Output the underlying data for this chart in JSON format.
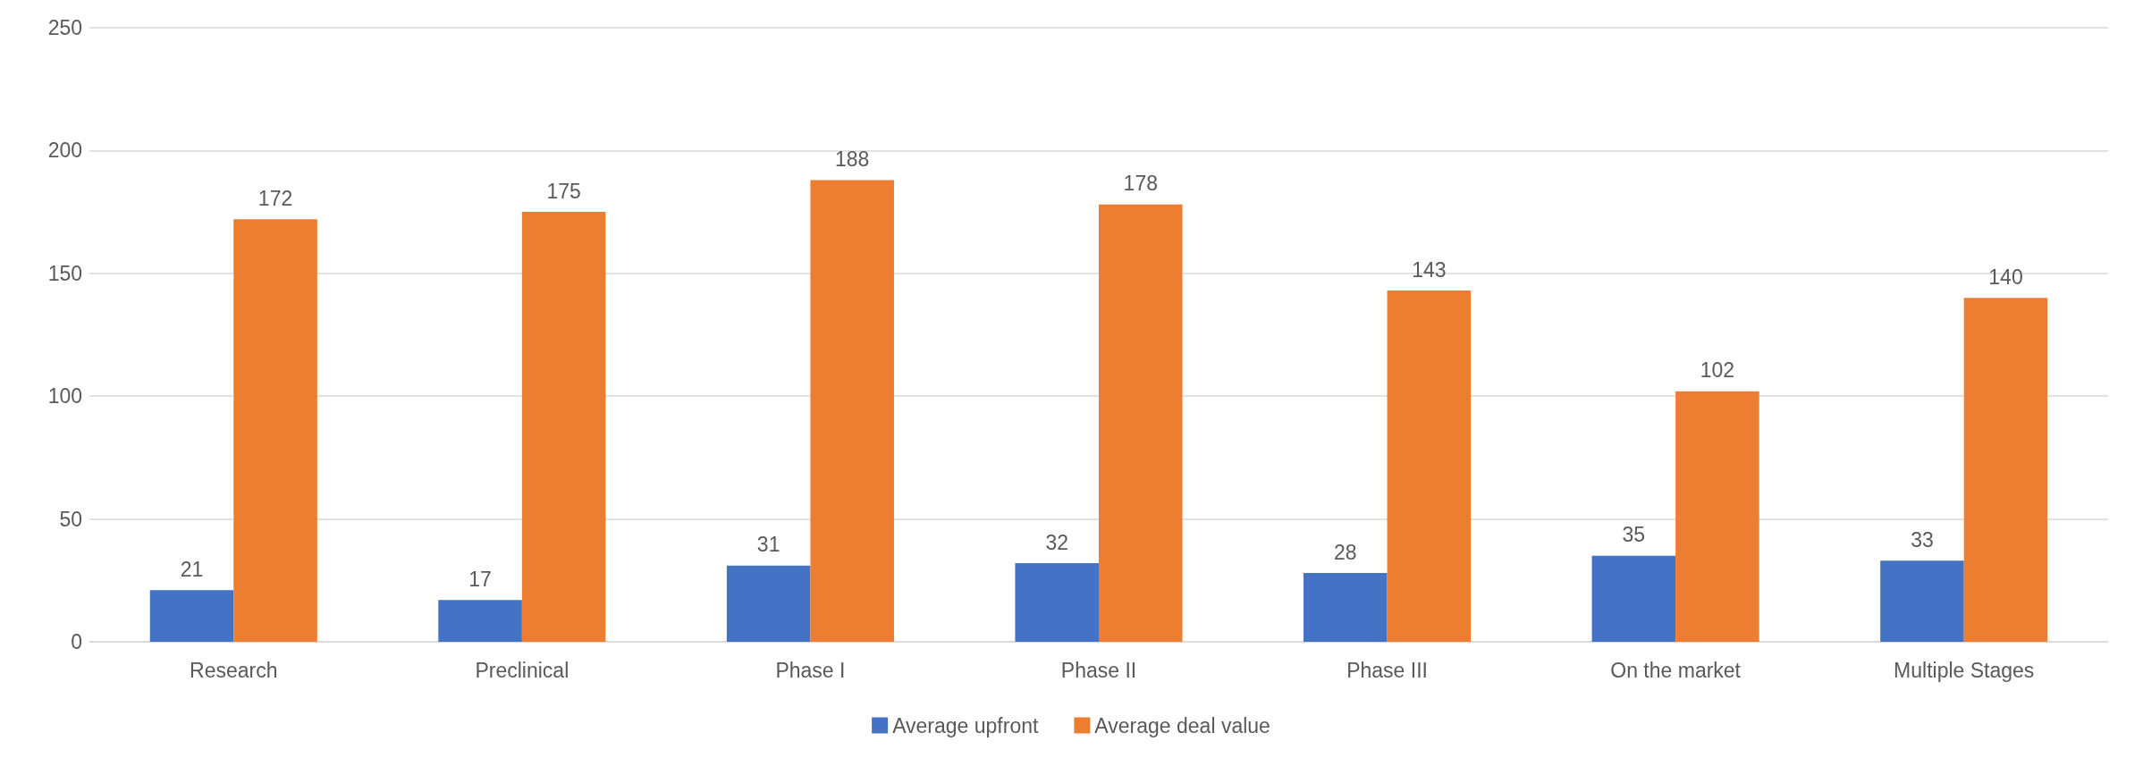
{
  "chart_data": {
    "type": "bar",
    "categories": [
      "Research",
      "Preclinical",
      "Phase I",
      "Phase II",
      "Phase III",
      "On the market",
      "Multiple Stages"
    ],
    "series": [
      {
        "name": "Average upfront",
        "color": "#4472c4",
        "values": [
          21,
          17,
          31,
          32,
          28,
          35,
          33
        ]
      },
      {
        "name": "Average deal value",
        "color": "#ed7d31",
        "values": [
          172,
          175,
          188,
          178,
          143,
          102,
          140
        ]
      }
    ],
    "ylim": [
      0,
      250
    ],
    "yticks": [
      0,
      50,
      100,
      150,
      200,
      250
    ],
    "grid": "y",
    "legend": "bottom",
    "data_labels": true
  }
}
